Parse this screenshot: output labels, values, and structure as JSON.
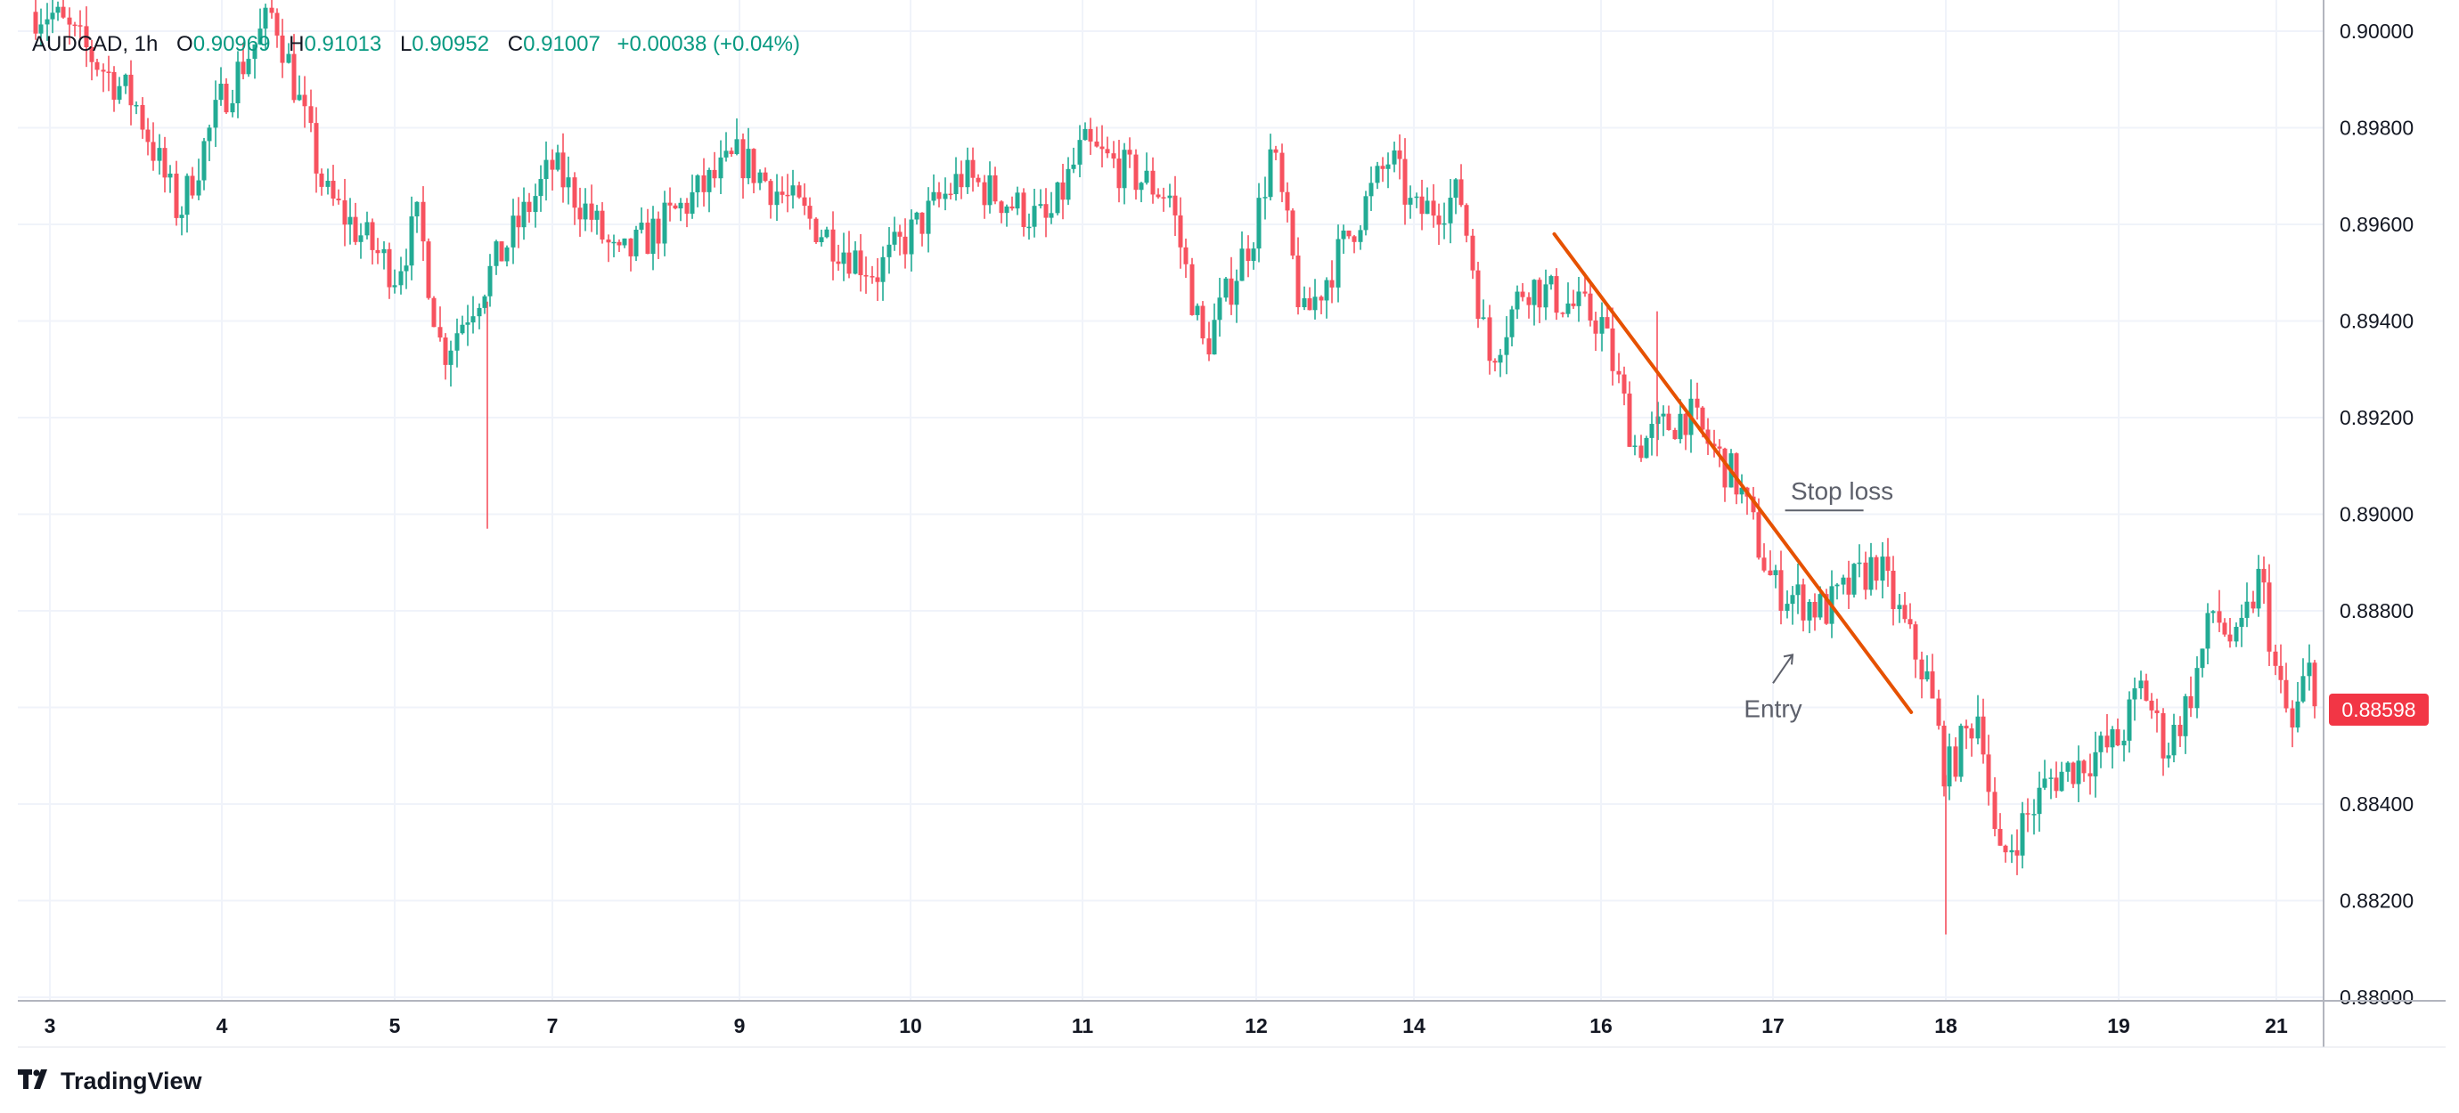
{
  "legend": {
    "symbol": "AUDCAD, 1h",
    "o_label": "O",
    "o_value": "0.90969",
    "h_label": "H",
    "h_value": "0.91013",
    "l_label": "L",
    "l_value": "0.90952",
    "c_label": "C",
    "c_value": "0.91007",
    "change": "+0.00038 (+0.04%)"
  },
  "last_price_badge": "0.88598",
  "branding": {
    "name": "TradingView",
    "logo_icon": "tradingview-logo-icon"
  },
  "colors": {
    "up": "#22ab94",
    "down": "#f7525f",
    "trendline": "#e65100",
    "grid": "#f0f3fa",
    "annotation": "#5d606b",
    "badge": "#f23645"
  },
  "chart_data": {
    "type": "candlestick",
    "symbol": "AUDCAD",
    "interval": "1h",
    "ylim": [
      0.88,
      0.9
    ],
    "y_ticks": [
      "0.90000",
      "0.89800",
      "0.89600",
      "0.89400",
      "0.89200",
      "0.89000",
      "0.88800",
      "0.88600",
      "0.88400",
      "0.88200",
      "0.88000"
    ],
    "x_ticks": [
      "3",
      "4",
      "5",
      "7",
      "9",
      "10",
      "11",
      "12",
      "14",
      "16",
      "17",
      "18",
      "19",
      "21"
    ],
    "grid": true,
    "last_price": 0.88598,
    "price_path": [
      {
        "x": "3",
        "y": 0.9004
      },
      {
        "x": "3.5",
        "y": 0.8985
      },
      {
        "x": "3.75",
        "y": 0.8962
      },
      {
        "x": "4",
        "y": 0.8986
      },
      {
        "x": "4.3",
        "y": 0.9004
      },
      {
        "x": "4.6",
        "y": 0.8966
      },
      {
        "x": "5",
        "y": 0.895
      },
      {
        "x": "5.3",
        "y": 0.8961
      },
      {
        "x": "5.6",
        "y": 0.8933
      },
      {
        "x": "7",
        "y": 0.8972
      },
      {
        "x": "7.4",
        "y": 0.8962
      },
      {
        "x": "7.7",
        "y": 0.8952
      },
      {
        "x": "9",
        "y": 0.8974
      },
      {
        "x": "9.5",
        "y": 0.8958
      },
      {
        "x": "9.8",
        "y": 0.895
      },
      {
        "x": "10",
        "y": 0.8958
      },
      {
        "x": "10.3",
        "y": 0.897
      },
      {
        "x": "10.8",
        "y": 0.896
      },
      {
        "x": "11",
        "y": 0.8976
      },
      {
        "x": "11.5",
        "y": 0.8966
      },
      {
        "x": "11.7",
        "y": 0.8934
      },
      {
        "x": "12",
        "y": 0.896
      },
      {
        "x": "12.2",
        "y": 0.8976
      },
      {
        "x": "12.6",
        "y": 0.894
      },
      {
        "x": "13.7",
        "y": 0.8974
      },
      {
        "x": "14",
        "y": 0.8962
      },
      {
        "x": "14.5",
        "y": 0.8966
      },
      {
        "x": "14.8",
        "y": 0.8932
      },
      {
        "x": "15.2",
        "y": 0.8948
      },
      {
        "x": "16",
        "y": 0.894
      },
      {
        "x": "16.2",
        "y": 0.8914
      },
      {
        "x": "16.5",
        "y": 0.8921
      },
      {
        "x": "16.8",
        "y": 0.8906
      },
      {
        "x": "17",
        "y": 0.8885
      },
      {
        "x": "17.3",
        "y": 0.888
      },
      {
        "x": "17.6",
        "y": 0.889
      },
      {
        "x": "17.9",
        "y": 0.8865
      },
      {
        "x": "18",
        "y": 0.8846
      },
      {
        "x": "18.2",
        "y": 0.886
      },
      {
        "x": "18.3",
        "y": 0.8827
      },
      {
        "x": "18.6",
        "y": 0.8845
      },
      {
        "x": "19",
        "y": 0.8853
      },
      {
        "x": "19.3",
        "y": 0.8865
      },
      {
        "x": "19.6",
        "y": 0.8851
      },
      {
        "x": "19.9",
        "y": 0.8862
      },
      {
        "x": "20.2",
        "y": 0.888
      },
      {
        "x": "20.5",
        "y": 0.8872
      },
      {
        "x": "20.8",
        "y": 0.8888
      },
      {
        "x": "21",
        "y": 0.8866
      },
      {
        "x": "21.2",
        "y": 0.8855
      },
      {
        "x": "21.4",
        "y": 0.8868
      },
      {
        "x": "21.6",
        "y": 0.88598
      }
    ],
    "trendline": {
      "start": {
        "x": "15.5",
        "y": 0.8958
      },
      "end": {
        "x": "17.8",
        "y": 0.8859
      }
    },
    "annotations": [
      {
        "text": "Stop loss",
        "at": {
          "x": "17.4",
          "y": 0.8903
        }
      },
      {
        "text": "Entry",
        "at": {
          "x": "17.0",
          "y": 0.8858
        }
      }
    ]
  }
}
